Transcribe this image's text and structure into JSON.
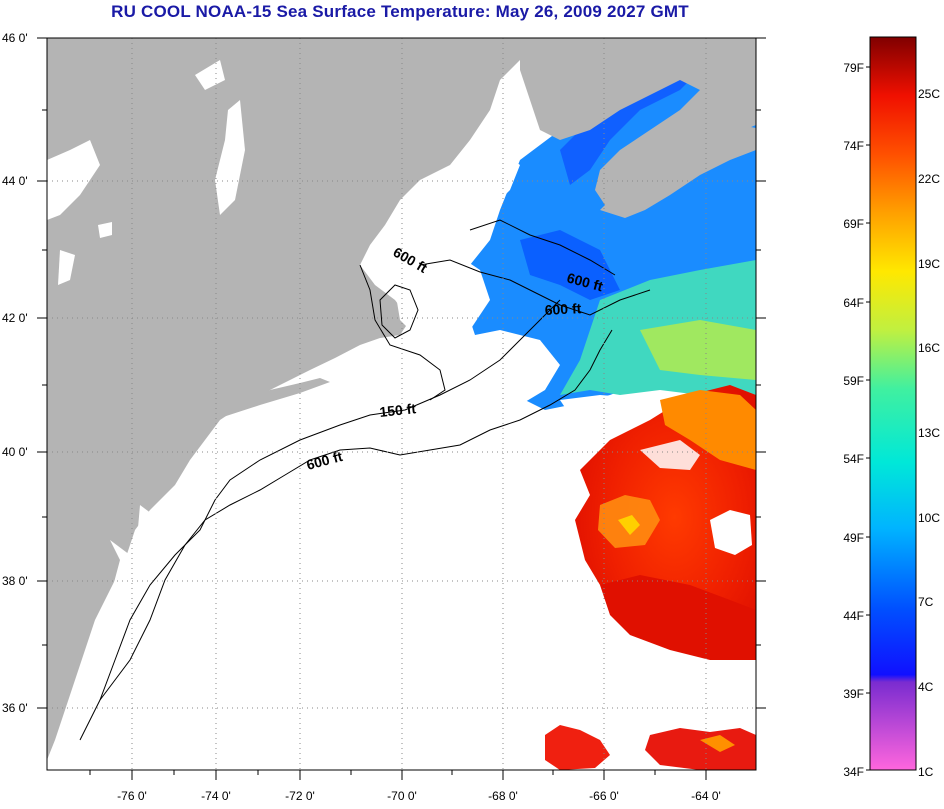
{
  "title": "RU COOL  NOAA-15  Sea Surface Temperature:  May 26, 2009 2027 GMT",
  "map": {
    "lon_labels": [
      "-76 0'",
      "-74 0'",
      "-72 0'",
      "-70 0'",
      "-68 0'",
      "-66 0'",
      "-64 0'"
    ],
    "lat_labels": [
      "46 0'",
      "44 0'",
      "42 0'",
      "40 0'",
      "38 0'",
      "36 0'"
    ],
    "contours": [
      {
        "text": "600 ft"
      },
      {
        "text": "600 ft"
      },
      {
        "text": "600 ft"
      },
      {
        "text": "150 ft"
      },
      {
        "text": "600 ft"
      }
    ],
    "colors": {
      "land": "#b4b4b4",
      "cloud": "#ffffff",
      "title": "#1a1aa6"
    }
  },
  "colorbar": {
    "fahrenheit": [
      "79F",
      "74F",
      "69F",
      "64F",
      "59F",
      "54F",
      "49F",
      "44F",
      "39F",
      "34F"
    ],
    "celsius": [
      "25C",
      "22C",
      "19C",
      "16C",
      "13C",
      "10C",
      "7C",
      "4C",
      "1C"
    ]
  }
}
